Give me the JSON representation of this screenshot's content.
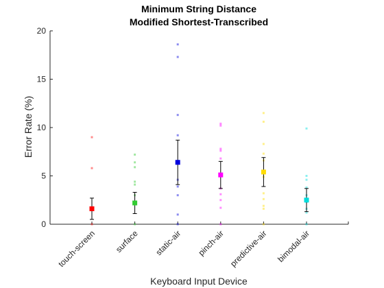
{
  "chart_data": {
    "type": "scatter",
    "title": "Minimum String Distance",
    "subtitle": "Modified Shortest-Transcribed",
    "xlabel": "Keyboard Input Device",
    "ylabel": "Error Rate (%)",
    "ylim": [
      0,
      20
    ],
    "yticks": [
      0,
      5,
      10,
      15,
      20
    ],
    "categories": [
      "touch-screen",
      "surface",
      "static-air",
      "pinch-air",
      "predictive-air",
      "bimodal-air"
    ],
    "series": [
      {
        "category": "touch-screen",
        "color": "#ff0000",
        "mean": 1.6,
        "err_low": 0.5,
        "err_high": 2.7,
        "points": [
          9.0,
          5.8,
          1.5,
          0.0
        ]
      },
      {
        "category": "surface",
        "color": "#33cc33",
        "mean": 2.2,
        "err_low": 1.1,
        "err_high": 3.3,
        "points": [
          7.2,
          6.4,
          5.9,
          4.4,
          4.1,
          3.0,
          2.1,
          0.0
        ]
      },
      {
        "category": "static-air",
        "color": "#0000dd",
        "mean": 6.4,
        "err_low": 4.1,
        "err_high": 8.7,
        "points": [
          18.6,
          17.3,
          11.3,
          9.2,
          6.3,
          4.6,
          3.9,
          3.0,
          1.0,
          0.0
        ]
      },
      {
        "category": "pinch-air",
        "color": "#ff00ff",
        "mean": 5.1,
        "err_low": 3.7,
        "err_high": 6.5,
        "points": [
          10.4,
          10.2,
          7.8,
          7.6,
          6.8,
          5.0,
          3.7,
          3.1,
          2.5,
          1.7,
          0.0
        ]
      },
      {
        "category": "predictive-air",
        "color": "#ffdd00",
        "mean": 5.4,
        "err_low": 3.9,
        "err_high": 6.9,
        "points": [
          11.5,
          10.6,
          8.3,
          7.3,
          6.6,
          4.9,
          3.2,
          2.6,
          1.9,
          1.6,
          0.0
        ]
      },
      {
        "category": "bimodal-air",
        "color": "#00dddd",
        "mean": 2.5,
        "err_low": 1.3,
        "err_high": 3.7,
        "points": [
          9.9,
          5.0,
          4.6,
          3.8,
          3.0,
          2.3,
          1.6,
          1.2,
          0.0
        ]
      }
    ],
    "grid": false,
    "legend": "none"
  }
}
